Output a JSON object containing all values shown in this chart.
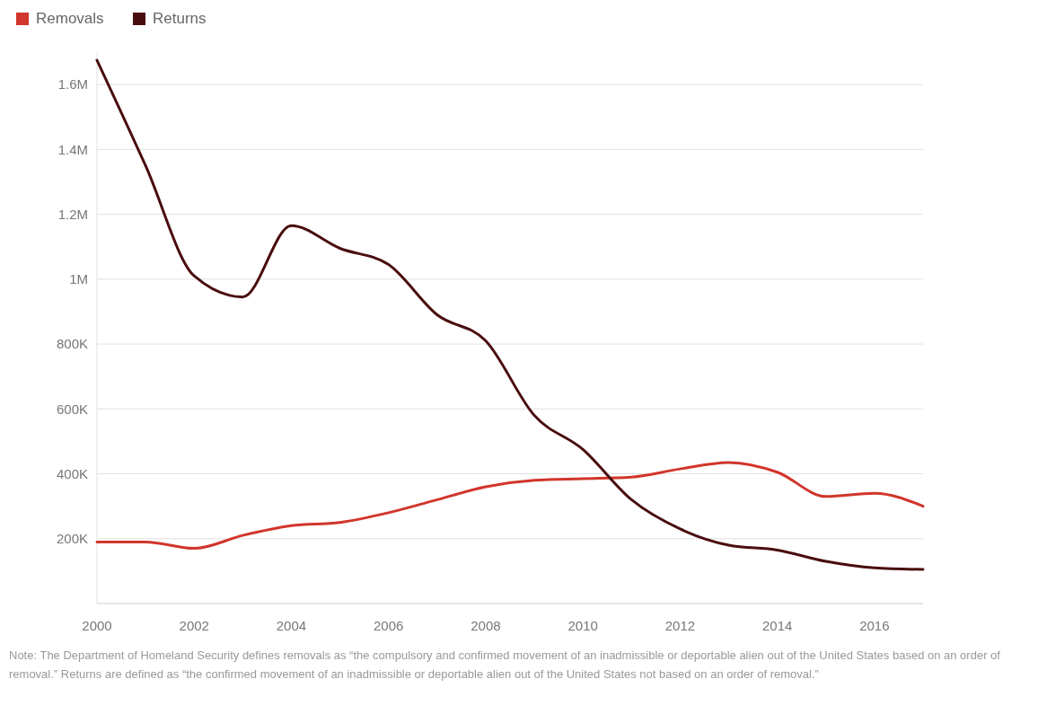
{
  "chart_data": {
    "type": "line",
    "x": [
      2000,
      2001,
      2002,
      2003,
      2004,
      2005,
      2006,
      2007,
      2008,
      2009,
      2010,
      2011,
      2012,
      2013,
      2014,
      2015,
      2016,
      2017
    ],
    "series": [
      {
        "name": "Removals",
        "color": "#d1352b",
        "values": [
          190000,
          190000,
          170000,
          210000,
          240000,
          250000,
          280000,
          320000,
          360000,
          380000,
          385000,
          390000,
          415000,
          435000,
          405000,
          330000,
          340000,
          300000
        ]
      },
      {
        "name": "Returns",
        "color": "#4a0d0f",
        "values": [
          1675000,
          1350000,
          1010000,
          945000,
          1165000,
          1095000,
          1045000,
          890000,
          810000,
          580000,
          475000,
          320000,
          230000,
          180000,
          165000,
          130000,
          110000,
          105000
        ]
      }
    ],
    "xlim": [
      2000,
      2017
    ],
    "xticks": [
      2000,
      2002,
      2004,
      2006,
      2008,
      2010,
      2012,
      2014,
      2016
    ],
    "ylim": [
      0,
      1700000
    ],
    "yticks": [
      {
        "value": 0,
        "label": null
      },
      {
        "value": 200000,
        "label": "200K"
      },
      {
        "value": 400000,
        "label": "400K"
      },
      {
        "value": 600000,
        "label": "600K"
      },
      {
        "value": 800000,
        "label": "800K"
      },
      {
        "value": 1000000,
        "label": "1M"
      },
      {
        "value": 1200000,
        "label": "1.2M"
      },
      {
        "value": 1400000,
        "label": "1.4M"
      },
      {
        "value": 1600000,
        "label": "1.6M"
      }
    ],
    "grid": "y",
    "legend": "top left",
    "marker": "none",
    "line_style": "solid",
    "annotations": [
      "Note: The Department of Homeland Security defines removals as “the compulsory and confirmed movement of an inadmissible or deportable alien out of the United States based on an order of removal.” Returns are defined as “the confirmed movement of an inadmissible or deportable alien out of the United States not based on an order of removal.”"
    ]
  }
}
